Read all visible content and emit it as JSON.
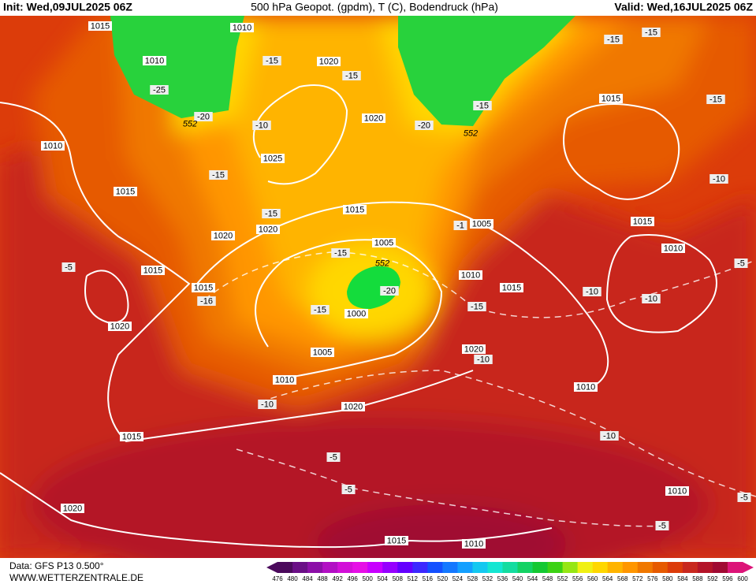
{
  "header": {
    "init": "Init: Wed,09JUL2025 06Z",
    "title": "500 hPa Geopot. (gpdm), T (C), Bodendruck (hPa)",
    "valid": "Valid: Wed,16JUL2025 06Z"
  },
  "map": {
    "isobar_labels": [
      "1015",
      "1010",
      "1010",
      "1020",
      "1010",
      "1020",
      "1025",
      "1015",
      "1015",
      "1020",
      "1020",
      "1015",
      "1005",
      "1015",
      "1005",
      "1010",
      "1015",
      "1010",
      "1015",
      "1015",
      "1020",
      "1000",
      "1005",
      "1020",
      "1010",
      "1010",
      "1020",
      "1015",
      "1010",
      "1020",
      "1015",
      "1010"
    ],
    "temperature_labels": [
      "-15",
      "-15",
      "-25",
      "-20",
      "-15",
      "-10",
      "-20",
      "-15",
      "-15",
      "-15",
      "-15",
      "-15",
      "-10",
      "-15",
      "-20",
      "-15",
      "-15",
      "-10",
      "-10",
      "-10",
      "-5",
      "-16",
      "-10",
      "-10",
      "-5",
      "-5",
      "-5",
      "-5",
      "-5",
      "-1"
    ],
    "geopotential_labels": [
      "552",
      "552",
      "552"
    ]
  },
  "legend": {
    "ticks": [
      476,
      480,
      484,
      488,
      492,
      496,
      500,
      504,
      508,
      512,
      516,
      520,
      524,
      528,
      532,
      536,
      540,
      544,
      548,
      552,
      556,
      560,
      564,
      568,
      572,
      576,
      580,
      584,
      588,
      592,
      596,
      600
    ],
    "colors": [
      "#4b0a5c",
      "#6a0f86",
      "#8c0fa8",
      "#b20fc4",
      "#d20fd8",
      "#e60fe6",
      "#c800ff",
      "#9600ff",
      "#6400ff",
      "#3c28ff",
      "#1450ff",
      "#1478ff",
      "#14a0ff",
      "#14c8f0",
      "#14e6d2",
      "#14dca0",
      "#14d264",
      "#14c832",
      "#3cd214",
      "#96e614",
      "#f0f014",
      "#ffd700",
      "#ffb400",
      "#ff9600",
      "#f07800",
      "#e65a00",
      "#dc3c0a",
      "#c8281e",
      "#b41428",
      "#a00a32",
      "#dc1478"
    ]
  },
  "footer": {
    "data": "Data: GFS P13 0.500°",
    "source": "WWW.WETTERZENTRALE.DE"
  }
}
